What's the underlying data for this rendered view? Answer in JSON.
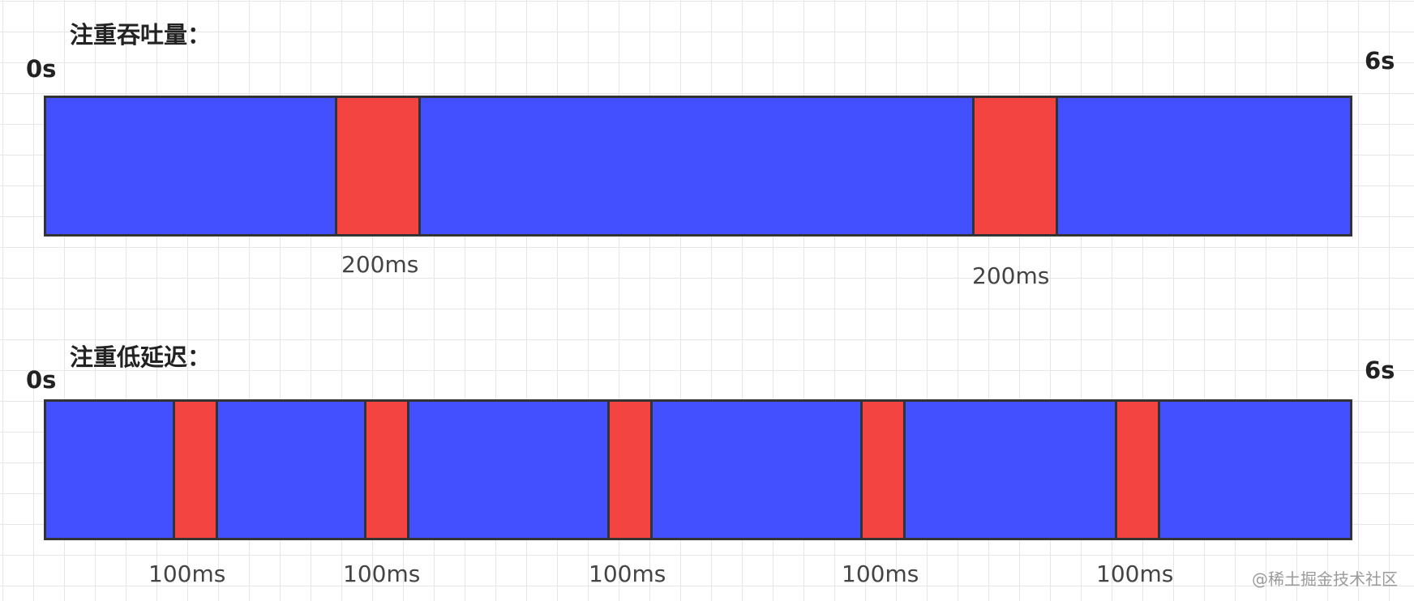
{
  "throughput": {
    "title": "注重吞吐量：",
    "start_label": "0s",
    "end_label": "6s",
    "pause_labels": [
      "200ms",
      "200ms"
    ]
  },
  "latency": {
    "title": "注重低延迟：",
    "start_label": "0s",
    "end_label": "6s",
    "pause_labels": [
      "100ms",
      "100ms",
      "100ms",
      "100ms",
      "100ms"
    ]
  },
  "colors": {
    "run": "#4250ff",
    "pause": "#f44442",
    "border": "#333333",
    "grid": "#e6e6e6"
  },
  "watermark": "@稀土掘金技术社区"
}
